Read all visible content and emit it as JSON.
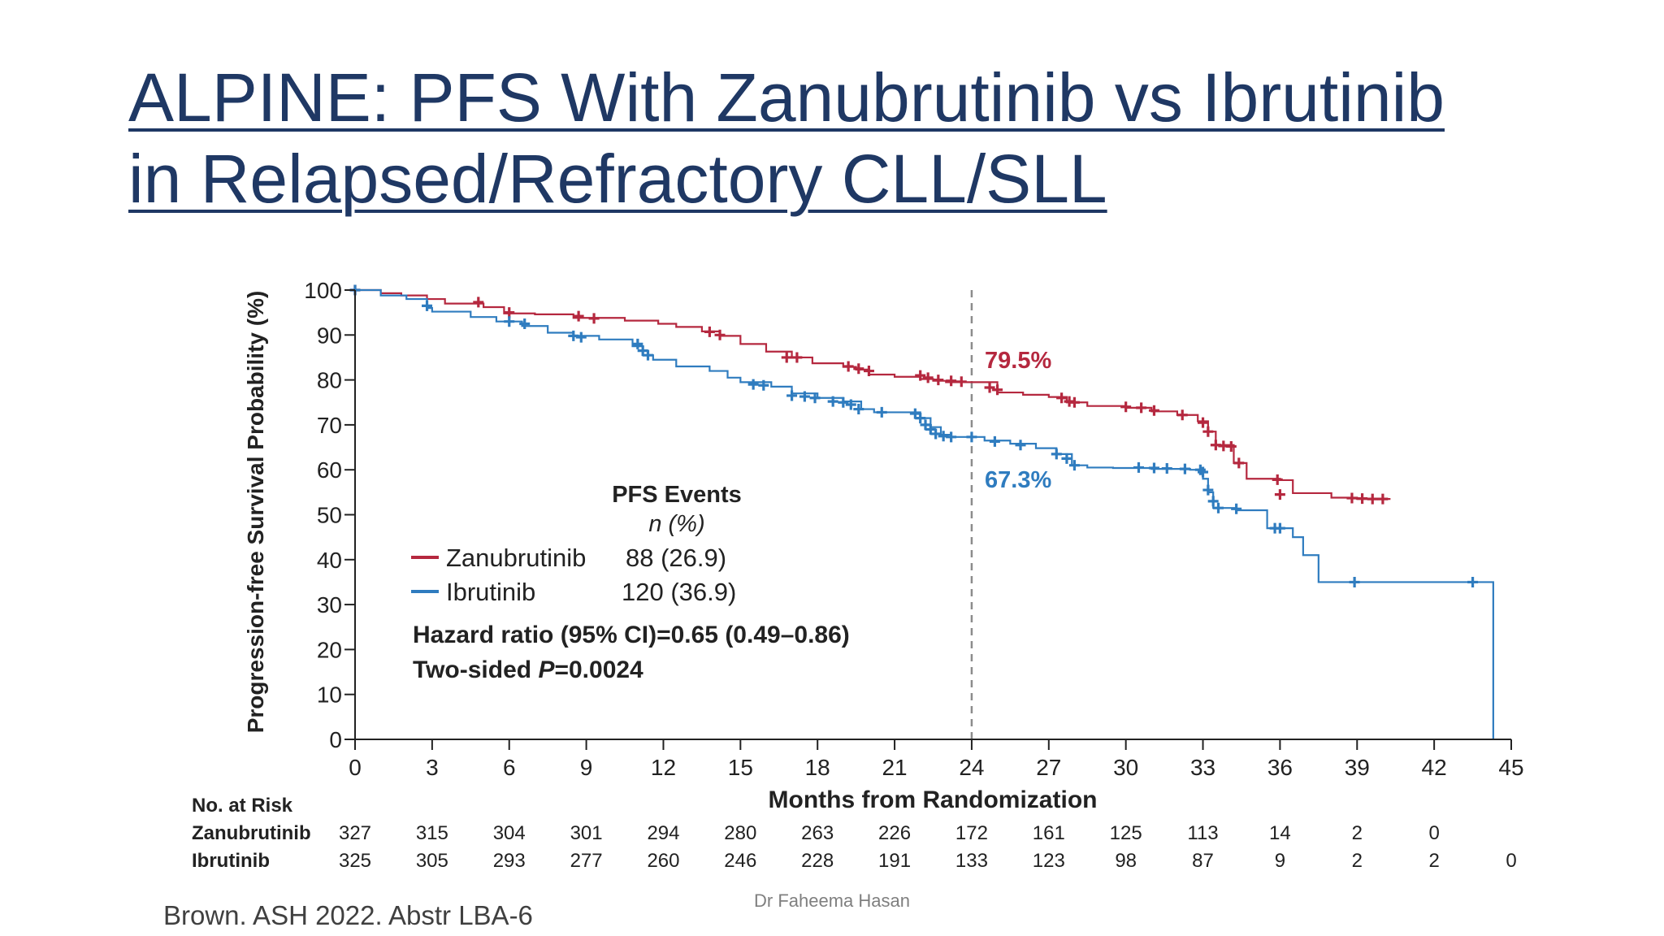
{
  "slide": {
    "title_line1": "ALPINE: PFS With Zanubrutinib vs Ibrutinib",
    "title_line2": "in Relapsed/Refractory CLL/SLL",
    "citation": "Brown. ASH 2022. Abstr LBA-6",
    "author": "Dr Faheema Hasan"
  },
  "colors": {
    "zanubrutinib": "#b5283f",
    "ibrutinib": "#2f7cbf",
    "title": "#1f3864"
  },
  "chart_data": {
    "type": "line",
    "ylabel": "Progression-free Survival Probability (%)",
    "xlabel": "Months from Randomization",
    "xlim": [
      0,
      45
    ],
    "ylim": [
      0,
      100
    ],
    "xticks": [
      0,
      3,
      6,
      9,
      12,
      15,
      18,
      21,
      24,
      27,
      30,
      33,
      36,
      39,
      42,
      45
    ],
    "yticks": [
      0,
      10,
      20,
      30,
      40,
      50,
      60,
      70,
      80,
      90,
      100
    ],
    "reference_line_x": 24,
    "series": [
      {
        "name": "Zanubrutinib",
        "color": "#b5283f",
        "landmark_label": "79.5%",
        "x": [
          0,
          1.0,
          1.8,
          2.8,
          3.5,
          5.0,
          5.8,
          7.0,
          8.5,
          10.5,
          11.8,
          12.5,
          13.5,
          14.2,
          15.0,
          16.0,
          17.0,
          17.8,
          19.0,
          19.5,
          20.0,
          21.0,
          22.0,
          22.5,
          23.0,
          25.0,
          26.0,
          27.0,
          27.7,
          28.5,
          30.0,
          31.0,
          32.0,
          32.8,
          33.2,
          33.5,
          34.2,
          34.7,
          36.0,
          36.5,
          38.0,
          39.0,
          40.3
        ],
        "y": [
          100,
          99.3,
          98.8,
          98,
          97,
          96.2,
          94.8,
          94.6,
          93.8,
          93.2,
          92.5,
          91.8,
          90.8,
          89.8,
          88.0,
          86.3,
          85.0,
          83.7,
          82.9,
          82.3,
          81.2,
          80.7,
          80.2,
          79.8,
          79.5,
          77.2,
          76.7,
          76.2,
          75.0,
          74.2,
          73.8,
          73.0,
          72.2,
          70.8,
          68.5,
          65.5,
          61.5,
          58.0,
          57.7,
          54.8,
          53.8,
          53.5,
          53.5
        ],
        "censor_x": [
          0,
          4.8,
          6.0,
          8.7,
          9.3,
          13.8,
          14.2,
          16.8,
          17.2,
          19.2,
          19.6,
          20.0,
          22.0,
          22.3,
          22.7,
          23.2,
          23.6,
          24.7,
          25.0,
          27.5,
          27.8,
          28.0,
          30.0,
          30.6,
          31.1,
          32.2,
          33.0,
          33.2,
          33.5,
          33.8,
          34.1,
          34.4,
          35.9,
          36.0,
          38.8,
          39.2,
          39.6,
          40.0
        ],
        "censor_y": [
          100,
          97.3,
          95.0,
          94.2,
          93.7,
          90.7,
          90.0,
          85.0,
          85.0,
          83.0,
          82.5,
          82.0,
          81.0,
          80.5,
          80.0,
          79.8,
          79.6,
          78.3,
          77.8,
          76.0,
          75.2,
          75.0,
          74.0,
          73.8,
          73.2,
          72.2,
          70.5,
          68.5,
          65.5,
          65.3,
          65.2,
          61.5,
          57.8,
          54.5,
          53.7,
          53.6,
          53.5,
          53.5
        ]
      },
      {
        "name": "Ibrutinib",
        "color": "#2f7cbf",
        "landmark_label": "67.3%",
        "x": [
          0,
          1.0,
          2.0,
          2.8,
          3.0,
          4.5,
          5.5,
          6.5,
          7.5,
          8.5,
          9.5,
          10.8,
          11.2,
          11.6,
          12.5,
          13.8,
          14.5,
          15.0,
          16.2,
          17.0,
          18.0,
          19.0,
          19.7,
          20.2,
          22.0,
          22.4,
          22.8,
          23.2,
          24.5,
          25.5,
          26.5,
          27.3,
          27.9,
          28.5,
          29.5,
          31.0,
          32.5,
          33.0,
          33.2,
          33.4,
          34.3,
          35.5,
          36.5,
          36.9,
          37.5,
          38.5,
          44.3
        ],
        "y": [
          100,
          98.8,
          98.0,
          96.0,
          95.2,
          94.0,
          93.0,
          92.0,
          90.5,
          89.8,
          89.0,
          87.5,
          85.5,
          84.5,
          83.0,
          82.0,
          80.5,
          79.5,
          78.5,
          77.0,
          76.0,
          75.2,
          73.5,
          72.8,
          71.5,
          69.5,
          67.8,
          67.3,
          66.5,
          65.8,
          64.8,
          63.5,
          61.0,
          60.5,
          60.4,
          60.2,
          60.0,
          58.0,
          55.0,
          51.5,
          51.0,
          47.0,
          45.0,
          41.0,
          35.0,
          35.0,
          0
        ],
        "censor_x": [
          0,
          2.8,
          6.0,
          6.6,
          8.5,
          8.8,
          11.0,
          11.2,
          11.4,
          15.5,
          15.9,
          17.0,
          17.5,
          17.9,
          18.6,
          19.0,
          19.3,
          19.6,
          20.5,
          21.8,
          22.0,
          22.2,
          22.4,
          22.6,
          22.9,
          23.2,
          24.0,
          24.9,
          25.9,
          27.3,
          27.7,
          28.0,
          30.5,
          31.1,
          31.6,
          32.3,
          32.9,
          33.0,
          33.2,
          33.4,
          33.6,
          34.3,
          35.8,
          36.0,
          38.9,
          43.5
        ],
        "censor_y": [
          100,
          96.5,
          93.0,
          92.5,
          89.8,
          89.5,
          88.0,
          86.5,
          85.5,
          79.0,
          78.8,
          76.5,
          76.3,
          76.0,
          75.2,
          75.0,
          74.5,
          73.5,
          72.8,
          72.5,
          71.5,
          70.0,
          69.0,
          68.0,
          67.5,
          67.3,
          67.3,
          66.3,
          65.5,
          63.5,
          62.5,
          61.0,
          60.5,
          60.4,
          60.3,
          60.2,
          60.0,
          59.5,
          55.5,
          53.0,
          51.5,
          51.3,
          47.0,
          47.0,
          35.0,
          35.0
        ]
      }
    ],
    "inset": {
      "heading": "PFS Events",
      "subheading": "n (%)",
      "rows": [
        {
          "name": "Zanubrutinib",
          "value": "88 (26.9)"
        },
        {
          "name": "Ibrutinib",
          "value": "120 (36.9)"
        }
      ],
      "hazard_ratio": "Hazard ratio (95% CI)=0.65 (0.49–0.86)",
      "p_prefix": "Two-sided ",
      "p_letter": "P",
      "p_value": "=0.0024"
    },
    "risk_table": {
      "heading": "No. at Risk",
      "rows": [
        {
          "name": "Zanubrutinib",
          "values": [
            "327",
            "315",
            "304",
            "301",
            "294",
            "280",
            "263",
            "226",
            "172",
            "161",
            "125",
            "113",
            "14",
            "2",
            "0"
          ]
        },
        {
          "name": "Ibrutinib",
          "values": [
            "325",
            "305",
            "293",
            "277",
            "260",
            "246",
            "228",
            "191",
            "133",
            "123",
            "98",
            "87",
            "9",
            "2",
            "2",
            "0"
          ]
        }
      ]
    }
  }
}
